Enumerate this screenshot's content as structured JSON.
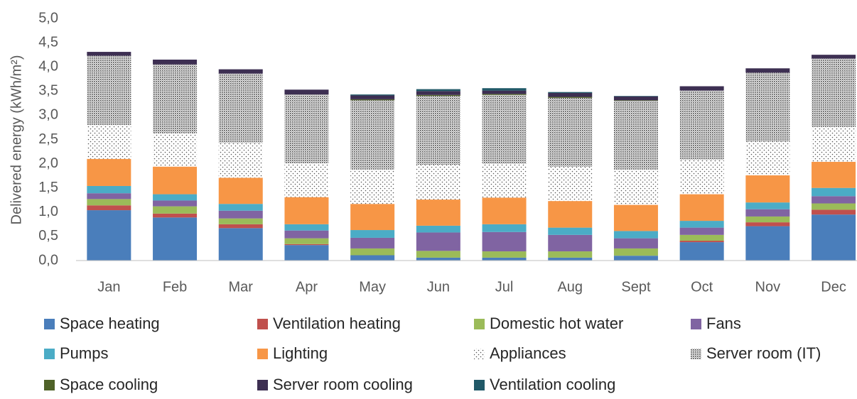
{
  "chart_data": {
    "type": "stacked_bar",
    "y_label": "Delivered energy (kWh/m²)",
    "categories": [
      "Jan",
      "Feb",
      "Mar",
      "Apr",
      "May",
      "Jun",
      "Jul",
      "Aug",
      "Sept",
      "Oct",
      "Nov",
      "Dec"
    ],
    "ylim": [
      0,
      5
    ],
    "yticks": [
      {
        "value": 0,
        "label": "0,0"
      },
      {
        "value": 0.5,
        "label": "0,5"
      },
      {
        "value": 1,
        "label": "1,0"
      },
      {
        "value": 1.5,
        "label": "1,5"
      },
      {
        "value": 2,
        "label": "2,0"
      },
      {
        "value": 2.5,
        "label": "2,5"
      },
      {
        "value": 3,
        "label": "3,0"
      },
      {
        "value": 3.5,
        "label": "3,5"
      },
      {
        "value": 4,
        "label": "4,0"
      },
      {
        "value": 4.5,
        "label": "4,5"
      },
      {
        "value": 5,
        "label": "5,0"
      }
    ],
    "grid": false,
    "legend": "bottom",
    "series": [
      {
        "name": "Space heating",
        "color": "#4a7ebb",
        "values": [
          1.04,
          0.89,
          0.67,
          0.32,
          0.11,
          0.06,
          0.06,
          0.06,
          0.1,
          0.38,
          0.71,
          0.95
        ]
      },
      {
        "name": "Ventilation heating",
        "color": "#c0504d",
        "values": [
          0.1,
          0.08,
          0.08,
          0.02,
          0,
          0,
          0,
          0,
          0,
          0.03,
          0.08,
          0.1
        ]
      },
      {
        "name": "Domestic hot water",
        "color": "#9bbb59",
        "values": [
          0.13,
          0.15,
          0.12,
          0.12,
          0.14,
          0.14,
          0.13,
          0.13,
          0.15,
          0.12,
          0.12,
          0.13
        ]
      },
      {
        "name": "Fans",
        "color": "#8064a2",
        "values": [
          0.12,
          0.12,
          0.16,
          0.16,
          0.22,
          0.38,
          0.4,
          0.34,
          0.21,
          0.15,
          0.15,
          0.15
        ]
      },
      {
        "name": "Pumps",
        "color": "#4bacc6",
        "values": [
          0.15,
          0.13,
          0.14,
          0.13,
          0.16,
          0.14,
          0.16,
          0.15,
          0.15,
          0.14,
          0.14,
          0.17
        ]
      },
      {
        "name": "Lighting",
        "color": "#f79646",
        "values": [
          0.56,
          0.57,
          0.54,
          0.56,
          0.54,
          0.54,
          0.55,
          0.55,
          0.54,
          0.55,
          0.56,
          0.54
        ]
      },
      {
        "name": "Appliances",
        "color": "#ffffff",
        "pattern": "sparse-dots",
        "values": [
          0.7,
          0.69,
          0.72,
          0.7,
          0.71,
          0.72,
          0.7,
          0.71,
          0.73,
          0.71,
          0.7,
          0.72
        ]
      },
      {
        "name": "Server room (IT)",
        "color": "#a6a6a6",
        "pattern": "dense-dots",
        "values": [
          1.43,
          1.42,
          1.43,
          1.42,
          1.43,
          1.42,
          1.42,
          1.42,
          1.42,
          1.43,
          1.42,
          1.41
        ]
      },
      {
        "name": "Space cooling",
        "color": "#4f6228",
        "values": [
          0,
          0,
          0,
          0,
          0.02,
          0.02,
          0.02,
          0.02,
          0.01,
          0,
          0,
          0
        ]
      },
      {
        "name": "Server room cooling",
        "color": "#3d2f52",
        "values": [
          0.08,
          0.1,
          0.09,
          0.1,
          0.08,
          0.08,
          0.07,
          0.08,
          0.08,
          0.09,
          0.09,
          0.08
        ]
      },
      {
        "name": "Ventilation cooling",
        "color": "#215968",
        "values": [
          0,
          0,
          0,
          0,
          0.02,
          0.04,
          0.05,
          0.02,
          0.01,
          0,
          0,
          0
        ]
      }
    ]
  }
}
